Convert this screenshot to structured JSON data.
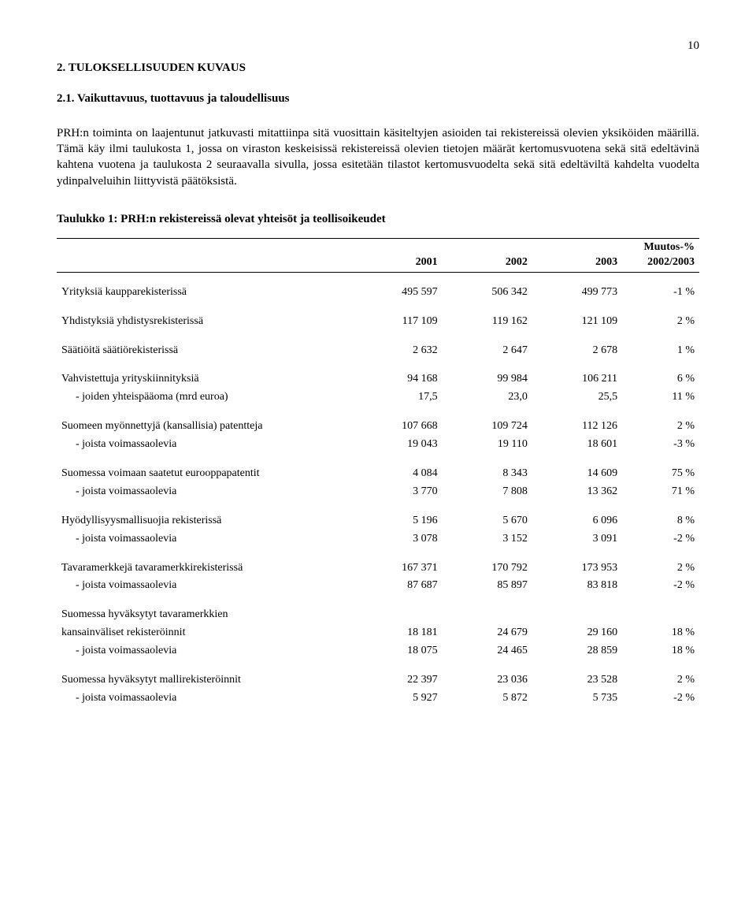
{
  "page_number": "10",
  "section_heading": "2.  TULOKSELLISUUDEN KUVAUS",
  "subsection_heading": "2.1. Vaikuttavuus, tuottavuus ja taloudellisuus",
  "paragraph": "PRH:n toiminta on laajentunut jatkuvasti mitattiinpa sitä vuosittain käsiteltyjen asioiden tai rekistereissä olevien yksiköiden määrillä. Tämä käy ilmi taulukosta 1, jossa on viraston keskeisissä rekistereissä olevien tietojen määrät kertomusvuotena sekä sitä edeltävinä kahtena vuotena ja taulukosta 2 seuraavalla sivulla, jossa esitetään tilastot kertomusvuodelta sekä sitä edeltäviltä kahdelta vuodelta ydinpalveluihin liittyvistä päätöksistä.",
  "table_title": "Taulukko 1:  PRH:n rekistereissä olevat yhteisöt ja teollisoikeudet",
  "columns": {
    "c0": "",
    "c1": "2001",
    "c2": "2002",
    "c3": "2003",
    "c4_line1": "Muutos-%",
    "c4_line2": "2002/2003"
  },
  "rows": [
    {
      "label": "Yrityksiä kaupparekisterissä",
      "v1": "495 597",
      "v2": "506 342",
      "v3": "499 773",
      "pct": "-1 %",
      "spacer_after": true
    },
    {
      "label": "Yhdistyksiä yhdistysrekisterissä",
      "v1": "117 109",
      "v2": "119 162",
      "v3": "121 109",
      "pct": "2 %",
      "spacer_after": true
    },
    {
      "label": "Säätiöitä säätiörekisterissä",
      "v1": "2 632",
      "v2": "2 647",
      "v3": "2 678",
      "pct": "1 %",
      "spacer_after": true
    },
    {
      "label": "Vahvistettuja yrityskiinnityksiä",
      "v1": "94 168",
      "v2": "99 984",
      "v3": "106 211",
      "pct": "6 %"
    },
    {
      "label": "- joiden yhteispääoma (mrd euroa)",
      "v1": "17,5",
      "v2": "23,0",
      "v3": "25,5",
      "pct": "11 %",
      "indent": true,
      "spacer_after": true
    },
    {
      "label": "Suomeen myönnettyjä (kansallisia) patentteja",
      "v1": "107 668",
      "v2": "109 724",
      "v3": "112 126",
      "pct": "2 %"
    },
    {
      "label": "- joista voimassaolevia",
      "v1": "19 043",
      "v2": "19 110",
      "v3": "18 601",
      "pct": "-3 %",
      "indent": true,
      "spacer_after": true
    },
    {
      "label": "Suomessa voimaan saatetut eurooppapatentit",
      "v1": "4 084",
      "v2": "8 343",
      "v3": "14 609",
      "pct": "75 %"
    },
    {
      "label": "- joista voimassaolevia",
      "v1": "3 770",
      "v2": "7 808",
      "v3": "13 362",
      "pct": "71 %",
      "indent": true,
      "spacer_after": true
    },
    {
      "label": "Hyödyllisyysmallisuojia rekisterissä",
      "v1": "5 196",
      "v2": "5 670",
      "v3": "6 096",
      "pct": "8 %"
    },
    {
      "label": "- joista voimassaolevia",
      "v1": "3 078",
      "v2": "3 152",
      "v3": "3 091",
      "pct": "-2 %",
      "indent": true,
      "spacer_after": true
    },
    {
      "label": "Tavaramerkkejä tavaramerkkirekisterissä",
      "v1": "167 371",
      "v2": "170 792",
      "v3": "173 953",
      "pct": "2 %"
    },
    {
      "label": "- joista voimassaolevia",
      "v1": "87 687",
      "v2": "85 897",
      "v3": "83 818",
      "pct": "-2 %",
      "indent": true,
      "spacer_after": true
    },
    {
      "label": "Suomessa hyväksytyt tavaramerkkien",
      "v1": "",
      "v2": "",
      "v3": "",
      "pct": ""
    },
    {
      "label": "kansainväliset rekisteröinnit",
      "v1": "18 181",
      "v2": "24 679",
      "v3": "29 160",
      "pct": "18 %"
    },
    {
      "label": "- joista voimassaolevia",
      "v1": "18 075",
      "v2": "24 465",
      "v3": "28 859",
      "pct": "18 %",
      "indent": true,
      "spacer_after": true
    },
    {
      "label": "Suomessa hyväksytyt mallirekisteröinnit",
      "v1": "22 397",
      "v2": "23 036",
      "v3": "23 528",
      "pct": "2 %"
    },
    {
      "label": "- joista voimassaolevia",
      "v1": "5 927",
      "v2": "5 872",
      "v3": "5 735",
      "pct": "-2 %",
      "indent": true
    }
  ]
}
